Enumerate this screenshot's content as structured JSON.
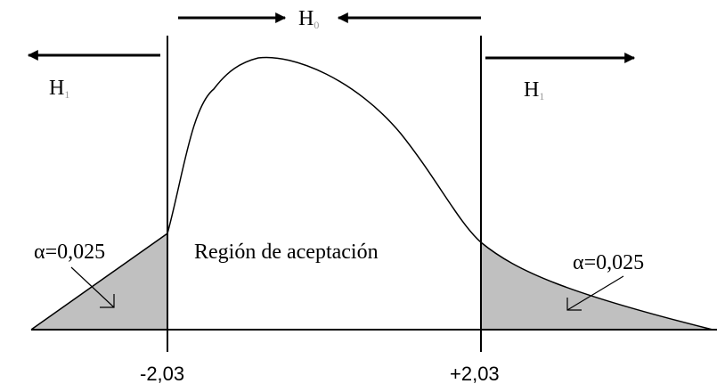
{
  "diagram": {
    "h0": {
      "main": "H",
      "sub": "0"
    },
    "h1_left": {
      "main": "H",
      "sub": "1"
    },
    "h1_right": {
      "main": "H",
      "sub": "1"
    },
    "region_label": "Región de aceptación",
    "alpha_left": "α=0,025",
    "alpha_right": "α=0,025",
    "critical_left": "-2,03",
    "critical_right": "+2,03"
  }
}
